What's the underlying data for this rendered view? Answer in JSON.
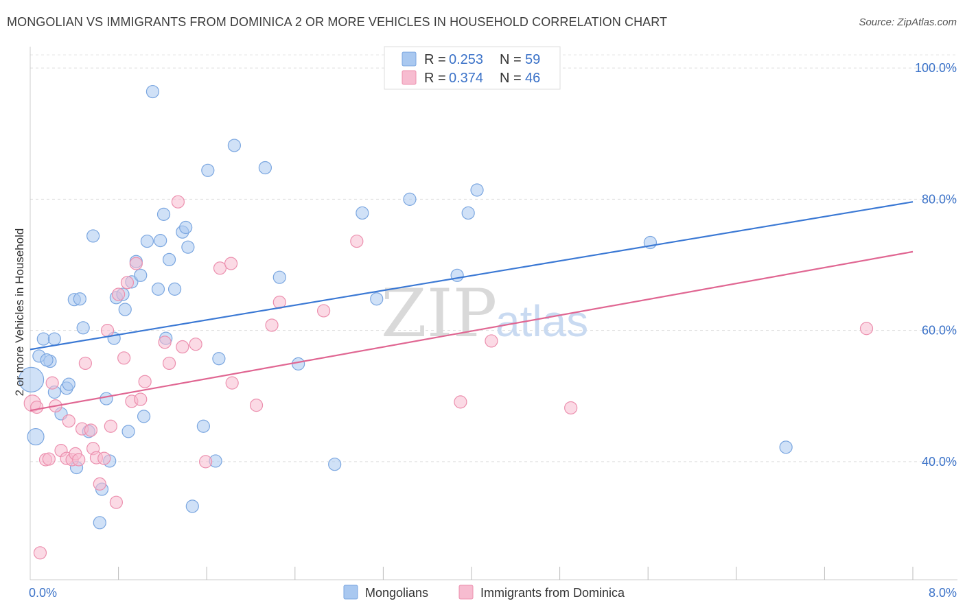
{
  "header": {
    "title": "MONGOLIAN VS IMMIGRANTS FROM DOMINICA 2 OR MORE VEHICLES IN HOUSEHOLD CORRELATION CHART",
    "source": "Source: ZipAtlas.com"
  },
  "stats": [
    {
      "r_label": "R =",
      "r_value": "0.253",
      "n_label": "N =",
      "n_value": "59",
      "color": "#a9c8f0",
      "stroke": "#7aa6e0"
    },
    {
      "r_label": "R =",
      "r_value": "0.374",
      "n_label": "N =",
      "n_value": "46",
      "color": "#f7bcd0",
      "stroke": "#ec8fae"
    }
  ],
  "watermark": {
    "zip": "ZIP",
    "atlas": "atlas"
  },
  "chart_data": {
    "type": "scatter",
    "xlabel": "",
    "ylabel": "2 or more Vehicles in Household",
    "xlim": [
      0,
      8
    ],
    "ylim": [
      22,
      102
    ],
    "x_tick_labels": [
      {
        "value": 0,
        "label": "0.0%"
      },
      {
        "value": 8,
        "label": "8.0%"
      }
    ],
    "y_tick_labels": [
      {
        "value": 40,
        "label": "40.0%"
      },
      {
        "value": 60,
        "label": "60.0%"
      },
      {
        "value": 80,
        "label": "80.0%"
      },
      {
        "value": 100,
        "label": "100.0%"
      }
    ],
    "x_minor_ticks": [
      0.8,
      1.6,
      2.4,
      3.2,
      4.0,
      4.8,
      5.6,
      6.4,
      7.2,
      8.0
    ],
    "grid": true,
    "legend_position": "bottom-center",
    "series": [
      {
        "name": "Mongolians",
        "color": "#a9c8f0",
        "stroke": "#7aa6e0",
        "line_color": "#3a78d4",
        "trend": [
          [
            0,
            57.1
          ],
          [
            8,
            79.6
          ]
        ],
        "points": [
          [
            0.01,
            52.5,
            3
          ],
          [
            0.05,
            43.8,
            2
          ],
          [
            0.08,
            56.1,
            1
          ],
          [
            0.12,
            58.7,
            1
          ],
          [
            0.18,
            55.3,
            1
          ],
          [
            0.22,
            58.7,
            1
          ],
          [
            0.22,
            50.6,
            1
          ],
          [
            0.28,
            47.3,
            1
          ],
          [
            0.33,
            51.2,
            1
          ],
          [
            0.35,
            51.8,
            1
          ],
          [
            0.4,
            64.7,
            1
          ],
          [
            0.45,
            64.8,
            1
          ],
          [
            0.42,
            39.1,
            1
          ],
          [
            0.48,
            60.4,
            1
          ],
          [
            0.53,
            44.6,
            1
          ],
          [
            0.57,
            74.4,
            1
          ],
          [
            0.63,
            30.7,
            1
          ],
          [
            0.65,
            35.8,
            1
          ],
          [
            0.69,
            49.6,
            1
          ],
          [
            0.72,
            40.1,
            1
          ],
          [
            0.76,
            58.8,
            1
          ],
          [
            0.78,
            65.0,
            1
          ],
          [
            0.84,
            65.5,
            1
          ],
          [
            0.86,
            63.2,
            1
          ],
          [
            0.89,
            44.6,
            1
          ],
          [
            0.92,
            67.4,
            1
          ],
          [
            0.96,
            70.5,
            1
          ],
          [
            1.0,
            68.4,
            1
          ],
          [
            1.03,
            46.9,
            1
          ],
          [
            1.06,
            73.6,
            1
          ],
          [
            1.11,
            96.4,
            1
          ],
          [
            1.16,
            66.3,
            1
          ],
          [
            1.18,
            73.7,
            1
          ],
          [
            1.21,
            77.7,
            1
          ],
          [
            1.23,
            58.8,
            1
          ],
          [
            1.26,
            70.8,
            1
          ],
          [
            1.31,
            66.3,
            1
          ],
          [
            1.38,
            75.0,
            1
          ],
          [
            1.41,
            75.7,
            1
          ],
          [
            1.43,
            72.7,
            1
          ],
          [
            1.47,
            33.2,
            1
          ],
          [
            1.57,
            45.4,
            1
          ],
          [
            1.61,
            84.4,
            1
          ],
          [
            1.68,
            40.1,
            1
          ],
          [
            1.71,
            55.7,
            1
          ],
          [
            1.85,
            88.2,
            1
          ],
          [
            2.13,
            84.8,
            1
          ],
          [
            2.26,
            68.1,
            1
          ],
          [
            2.43,
            54.9,
            1
          ],
          [
            2.76,
            39.6,
            1
          ],
          [
            3.01,
            77.9,
            1
          ],
          [
            3.14,
            64.8,
            1
          ],
          [
            3.44,
            80.0,
            1
          ],
          [
            3.87,
            68.4,
            1
          ],
          [
            3.97,
            77.9,
            1
          ],
          [
            4.05,
            81.4,
            1
          ],
          [
            5.62,
            73.4,
            1
          ],
          [
            6.85,
            42.2,
            1
          ],
          [
            0.15,
            55.5,
            1
          ]
        ]
      },
      {
        "name": "Immigrants from Dominica",
        "color": "#f7bcd0",
        "stroke": "#ec8fae",
        "line_color": "#e06692",
        "trend": [
          [
            0,
            47.8
          ],
          [
            8,
            72.0
          ]
        ],
        "points": [
          [
            0.02,
            48.9,
            2
          ],
          [
            0.06,
            48.3,
            1
          ],
          [
            0.09,
            26.1,
            1
          ],
          [
            0.14,
            40.3,
            1
          ],
          [
            0.17,
            40.4,
            1
          ],
          [
            0.2,
            52.0,
            1
          ],
          [
            0.23,
            48.5,
            1
          ],
          [
            0.28,
            41.7,
            1
          ],
          [
            0.33,
            40.5,
            1
          ],
          [
            0.35,
            46.2,
            1
          ],
          [
            0.38,
            40.3,
            1
          ],
          [
            0.41,
            41.2,
            1
          ],
          [
            0.44,
            40.3,
            1
          ],
          [
            0.47,
            45.0,
            1
          ],
          [
            0.5,
            55.0,
            1
          ],
          [
            0.55,
            44.8,
            1
          ],
          [
            0.57,
            42.0,
            1
          ],
          [
            0.6,
            40.6,
            1
          ],
          [
            0.63,
            36.6,
            1
          ],
          [
            0.67,
            40.5,
            1
          ],
          [
            0.7,
            60.0,
            1
          ],
          [
            0.73,
            45.4,
            1
          ],
          [
            0.78,
            33.8,
            1
          ],
          [
            0.8,
            65.5,
            1
          ],
          [
            0.85,
            55.8,
            1
          ],
          [
            0.88,
            67.3,
            1
          ],
          [
            0.92,
            49.2,
            1
          ],
          [
            0.96,
            70.2,
            1
          ],
          [
            1.0,
            49.5,
            1
          ],
          [
            1.04,
            52.2,
            1
          ],
          [
            1.22,
            58.2,
            1
          ],
          [
            1.26,
            55.0,
            1
          ],
          [
            1.34,
            79.6,
            1
          ],
          [
            1.38,
            57.5,
            1
          ],
          [
            1.5,
            57.9,
            1
          ],
          [
            1.59,
            40.0,
            1
          ],
          [
            1.72,
            69.5,
            1
          ],
          [
            1.82,
            70.2,
            1
          ],
          [
            1.83,
            52.0,
            1
          ],
          [
            2.05,
            48.6,
            1
          ],
          [
            2.19,
            60.8,
            1
          ],
          [
            2.26,
            64.3,
            1
          ],
          [
            2.66,
            63.0,
            1
          ],
          [
            2.96,
            73.6,
            1
          ],
          [
            3.9,
            49.1,
            1
          ],
          [
            4.18,
            58.4,
            1
          ],
          [
            4.9,
            48.2,
            1
          ],
          [
            7.58,
            60.3,
            1
          ]
        ]
      }
    ]
  }
}
